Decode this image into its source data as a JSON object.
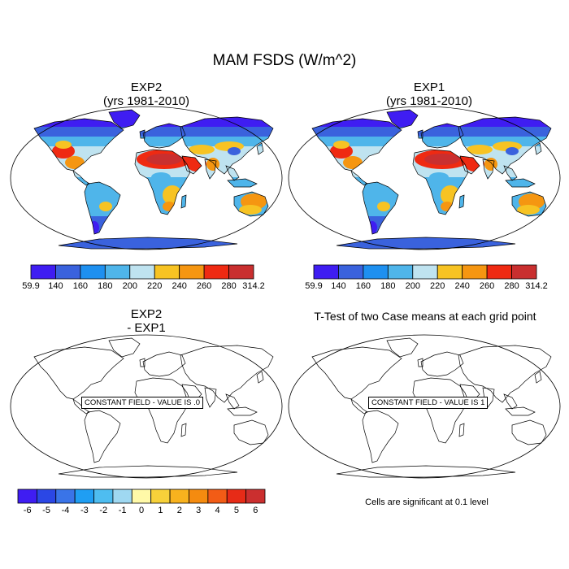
{
  "main_title": "MAM FSDS (W/m^2)",
  "panels": {
    "top_left": {
      "title": "EXP2",
      "subtitle": "(yrs 1981-2010)"
    },
    "top_right": {
      "title": "EXP1",
      "subtitle": "(yrs 1981-2010)"
    },
    "bottom_left": {
      "title": "EXP2",
      "subtitle": "- EXP1",
      "constant_label": "CONSTANT FIELD - VALUE IS .0"
    },
    "bottom_right": {
      "title": "T-Test of two Case means at each grid point",
      "constant_label": "CONSTANT FIELD - VALUE IS 1"
    }
  },
  "footnote": "Cells are significant at 0.1 level",
  "colorbar_fsds": {
    "labels": [
      "59.9",
      "140",
      "160",
      "180",
      "200",
      "220",
      "240",
      "260",
      "280",
      "314.2"
    ],
    "colors": [
      "#3f1df2",
      "#3a62dd",
      "#1e90f0",
      "#4fb5ea",
      "#bfe3f0",
      "#f7c323",
      "#f59611",
      "#ef2a12",
      "#c92f2f"
    ]
  },
  "colorbar_diff": {
    "labels": [
      "-6",
      "-5",
      "-4",
      "-3",
      "-2",
      "-1",
      "0",
      "1",
      "2",
      "3",
      "4",
      "5",
      "6"
    ],
    "colors": [
      "#3f1df2",
      "#2b47e5",
      "#3a74e8",
      "#1f9ef3",
      "#4ebdf0",
      "#9fd8f1",
      "#fff9a8",
      "#f7d13a",
      "#f8b21e",
      "#f58b0f",
      "#f25c16",
      "#e72b17",
      "#cb2f2f"
    ]
  }
}
